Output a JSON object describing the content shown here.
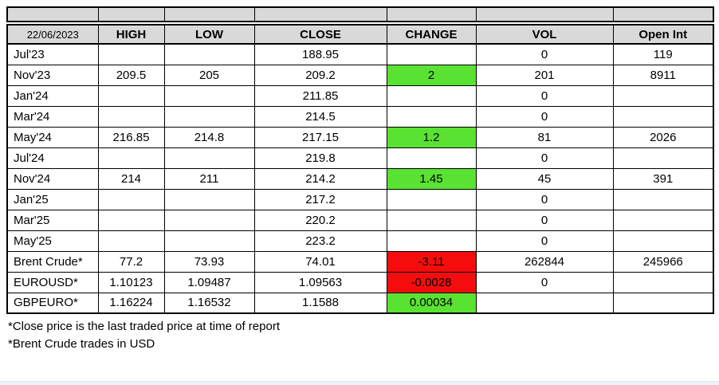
{
  "table": {
    "date": "22/06/2023",
    "columns": [
      "HIGH",
      "LOW",
      "CLOSE",
      "CHANGE",
      "VOL",
      "Open Int"
    ],
    "rows": [
      {
        "label": "Jul'23",
        "high": "",
        "low": "",
        "close": "188.95",
        "change": "",
        "change_bg": null,
        "vol": "0",
        "open_int": "119"
      },
      {
        "label": "Nov'23",
        "high": "209.5",
        "low": "205",
        "close": "209.2",
        "change": "2",
        "change_bg": "green",
        "vol": "201",
        "open_int": "8911"
      },
      {
        "label": "Jan'24",
        "high": "",
        "low": "",
        "close": "211.85",
        "change": "",
        "change_bg": null,
        "vol": "0",
        "open_int": ""
      },
      {
        "label": "Mar'24",
        "high": "",
        "low": "",
        "close": "214.5",
        "change": "",
        "change_bg": null,
        "vol": "0",
        "open_int": ""
      },
      {
        "label": "May'24",
        "high": "216.85",
        "low": "214.8",
        "close": "217.15",
        "change": "1.2",
        "change_bg": "green",
        "vol": "81",
        "open_int": "2026"
      },
      {
        "label": "Jul'24",
        "high": "",
        "low": "",
        "close": "219.8",
        "change": "",
        "change_bg": null,
        "vol": "0",
        "open_int": ""
      },
      {
        "label": "Nov'24",
        "high": "214",
        "low": "211",
        "close": "214.2",
        "change": "1.45",
        "change_bg": "green",
        "vol": "45",
        "open_int": "391"
      },
      {
        "label": "Jan'25",
        "high": "",
        "low": "",
        "close": "217.2",
        "change": "",
        "change_bg": null,
        "vol": "0",
        "open_int": ""
      },
      {
        "label": "Mar'25",
        "high": "",
        "low": "",
        "close": "220.2",
        "change": "",
        "change_bg": null,
        "vol": "0",
        "open_int": ""
      },
      {
        "label": "May'25",
        "high": "",
        "low": "",
        "close": "223.2",
        "change": "",
        "change_bg": null,
        "vol": "0",
        "open_int": ""
      },
      {
        "label": "Brent Crude*",
        "high": "77.2",
        "low": "73.93",
        "close": "74.01",
        "change": "-3.11",
        "change_bg": "red",
        "vol": "262844",
        "open_int": "245966"
      },
      {
        "label": "EUROUSD*",
        "high": "1.10123",
        "low": "1.09487",
        "close": "1.09563",
        "change": "-0.0028",
        "change_bg": "red",
        "vol": "0",
        "open_int": ""
      },
      {
        "label": "GBPEURO*",
        "high": "1.16224",
        "low": "1.16532",
        "close": "1.1588",
        "change": "0.00034",
        "change_bg": "green",
        "vol": "",
        "open_int": ""
      }
    ]
  },
  "footnotes": [
    "*Close price is the last traded price at time of report",
    "*Brent Crude trades in USD"
  ],
  "colors": {
    "header_bg": "#d9d9d9",
    "positive": "#5ae232",
    "negative": "#f50d0d",
    "grid": "#000000"
  }
}
